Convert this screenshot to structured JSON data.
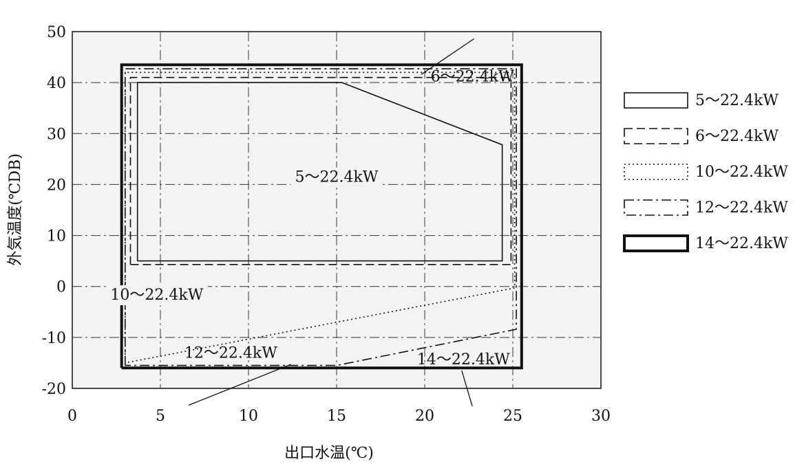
{
  "chart_data": {
    "type": "line",
    "xlabel": "出口水温(℃)",
    "ylabel": "外気温度(℃DB)",
    "xlim": [
      0,
      30
    ],
    "ylim": [
      -20,
      50
    ],
    "x_ticks": [
      "0",
      "5",
      "10",
      "15",
      "20",
      "25",
      "30"
    ],
    "y_ticks": [
      "50",
      "40",
      "30",
      "20",
      "10",
      "0",
      "-10",
      "-20"
    ],
    "grid": "dash-dot",
    "legend_position": "right",
    "series": [
      {
        "name": "5〜22.4kW",
        "line_style": "solid",
        "label": "5〜22.4kW",
        "points": [
          [
            3.7,
            5
          ],
          [
            3.7,
            40
          ],
          [
            15.3,
            40
          ],
          [
            24.4,
            27.8
          ],
          [
            24.4,
            5
          ],
          [
            3.7,
            5
          ]
        ]
      },
      {
        "name": "6〜22.4kW",
        "line_style": "dashed",
        "label": "6〜22.4kW",
        "points": [
          [
            3.3,
            4.3
          ],
          [
            3.3,
            41
          ],
          [
            24.9,
            41
          ],
          [
            24.9,
            4.3
          ],
          [
            3.3,
            4.3
          ]
        ]
      },
      {
        "name": "10〜22.4kW",
        "line_style": "dotted",
        "label": "10〜22.4kW",
        "points": [
          [
            3.0,
            -15
          ],
          [
            3.0,
            42
          ],
          [
            25.1,
            42
          ],
          [
            25.1,
            -0.3
          ],
          [
            3.0,
            -15
          ]
        ]
      },
      {
        "name": "12〜22.4kW",
        "line_style": "dash-dot",
        "label": "12〜22.4kW",
        "points": [
          [
            3.0,
            -15.5
          ],
          [
            3.0,
            42.7
          ],
          [
            25.2,
            42.7
          ],
          [
            25.2,
            -8.4
          ],
          [
            15.0,
            -15.5
          ],
          [
            3.0,
            -15.5
          ]
        ]
      },
      {
        "name": "14〜22.4kW",
        "line_style": "thick-solid",
        "label": "14〜22.4kW",
        "points": [
          [
            2.8,
            -16
          ],
          [
            2.8,
            43.5
          ],
          [
            25.5,
            43.5
          ],
          [
            25.5,
            -16
          ],
          [
            2.8,
            -16
          ]
        ]
      }
    ],
    "region_labels": [
      {
        "text": "5〜22.4kW",
        "x": 15.0,
        "y": 20.5
      },
      {
        "text": "10〜22.4kW",
        "x": 4.8,
        "y": -2.6
      },
      {
        "text": "6〜22.4kW",
        "x": 22.7,
        "y": 40.2
      },
      {
        "text": "12〜22.4kW",
        "x": 9.0,
        "y": -14.0
      },
      {
        "text": "14〜22.4kW",
        "x": 22.2,
        "y": -15.3
      }
    ],
    "colors": {
      "line": "#111111",
      "plot_background": "#f3f3f3"
    }
  }
}
